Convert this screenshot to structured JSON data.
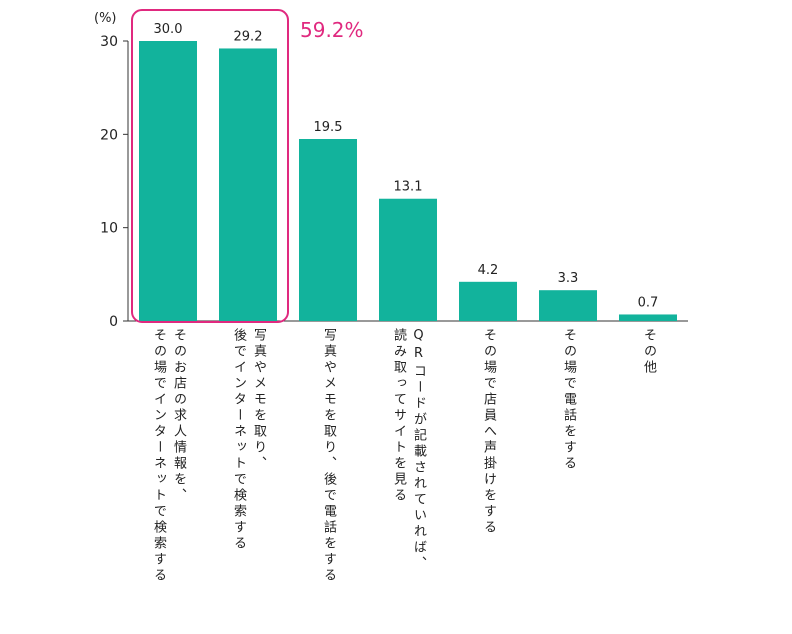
{
  "chart_data": {
    "type": "bar",
    "unit_label": "(%)",
    "ylim": [
      0,
      30
    ],
    "yticks": [
      "0",
      "10",
      "20",
      "30"
    ],
    "grid": false,
    "bar_color": "#12b39c",
    "highlight_color": "#e0297f",
    "highlight_text": "59.2%",
    "highlight_indices": [
      0,
      1
    ],
    "categories": [
      "そのお店の求人情報を、\nその場でインターネットで検索する",
      "写真やメモを取り、\n後でインターネットで検索する",
      "写真やメモを取り、後で電話をする",
      "QRコードが記載されていれば、\n読み取ってサイトを見る",
      "その場で店員へ声掛けをする",
      "その場で電話をする",
      "その他"
    ],
    "values": [
      30.0,
      29.2,
      19.5,
      13.1,
      4.2,
      3.3,
      0.7
    ],
    "value_labels": [
      "30.0",
      "29.2",
      "19.5",
      "13.1",
      "4.2",
      "3.3",
      "0.7"
    ]
  }
}
